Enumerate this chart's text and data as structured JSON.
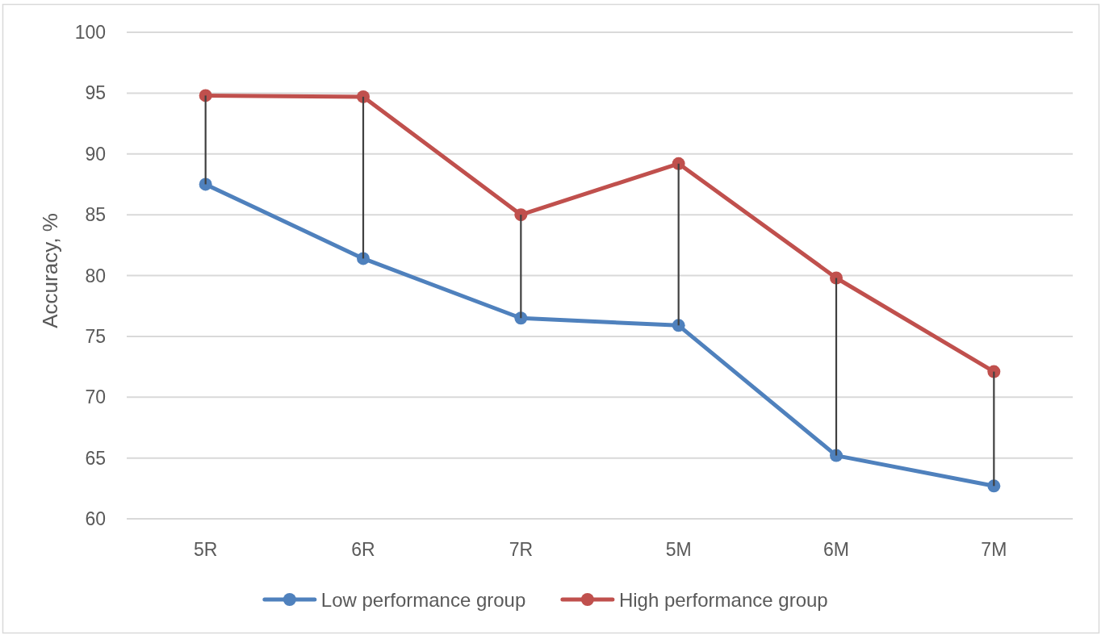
{
  "chart_data": {
    "type": "line",
    "ylabel": "Accuracy, %",
    "categories": [
      "5R",
      "6R",
      "7R",
      "5M",
      "6M",
      "7M"
    ],
    "series": [
      {
        "name": "Low performance group",
        "color": "#4f81bd",
        "values": [
          87.5,
          81.4,
          76.5,
          75.9,
          65.2,
          62.7
        ]
      },
      {
        "name": "High performance group",
        "color": "#c0504d",
        "values": [
          94.8,
          94.7,
          85.0,
          89.2,
          79.8,
          72.1
        ]
      },
      {
        "type": "bar",
        "color": "#404040",
        "base": [
          87.5,
          81.4,
          76.5,
          75.9,
          65.2,
          62.7
        ],
        "values": [
          7.3,
          13.3,
          8.5,
          13.3,
          14.6,
          9.4
        ]
      }
    ],
    "ylim": [
      60,
      100
    ],
    "yticks": [
      60,
      65,
      70,
      75,
      80,
      85,
      90,
      95,
      100
    ],
    "grid": "y",
    "legend": "bottom",
    "marker": "circle",
    "line_style": "solid"
  }
}
